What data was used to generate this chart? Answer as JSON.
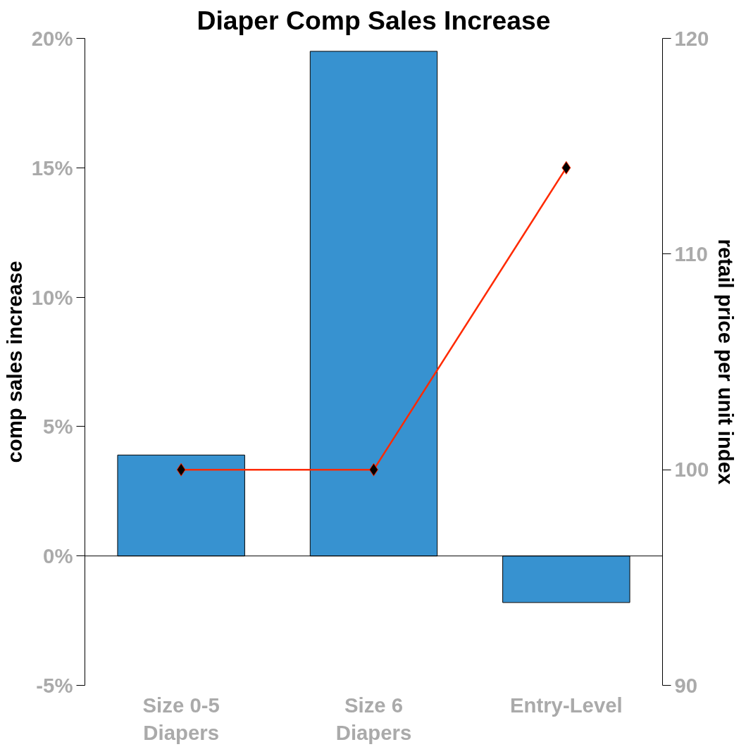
{
  "chart_data": {
    "type": "bar",
    "title": "Diaper Comp Sales Increase",
    "ylabel": "comp sales increase",
    "y2label": "retail price per unit index",
    "categories": [
      "Size 0-5 Diapers",
      "Size 6 Diapers",
      "Entry-Level"
    ],
    "series": [
      {
        "color": "#3792d0",
        "values": [
          3.9,
          19.5,
          -1.8
        ]
      },
      {
        "type": "line",
        "axis": "y2",
        "color": "#ff2a00",
        "marker": "diamond",
        "values": [
          100,
          100,
          114
        ]
      }
    ],
    "ylim": [
      -5,
      20
    ],
    "yticks": [
      {
        "value": -5,
        "label": "-5%"
      },
      {
        "value": 0,
        "label": "0%"
      },
      {
        "value": 5,
        "label": "5%"
      },
      {
        "value": 10,
        "label": "10%"
      },
      {
        "value": 15,
        "label": "15%"
      },
      {
        "value": 20,
        "label": "20%"
      }
    ],
    "y2lim": [
      90,
      120
    ],
    "y2ticks": [
      90,
      100,
      110,
      120
    ],
    "ref_lines": [
      {
        "axis": "y",
        "value": 0,
        "color": "#000000"
      }
    ]
  }
}
